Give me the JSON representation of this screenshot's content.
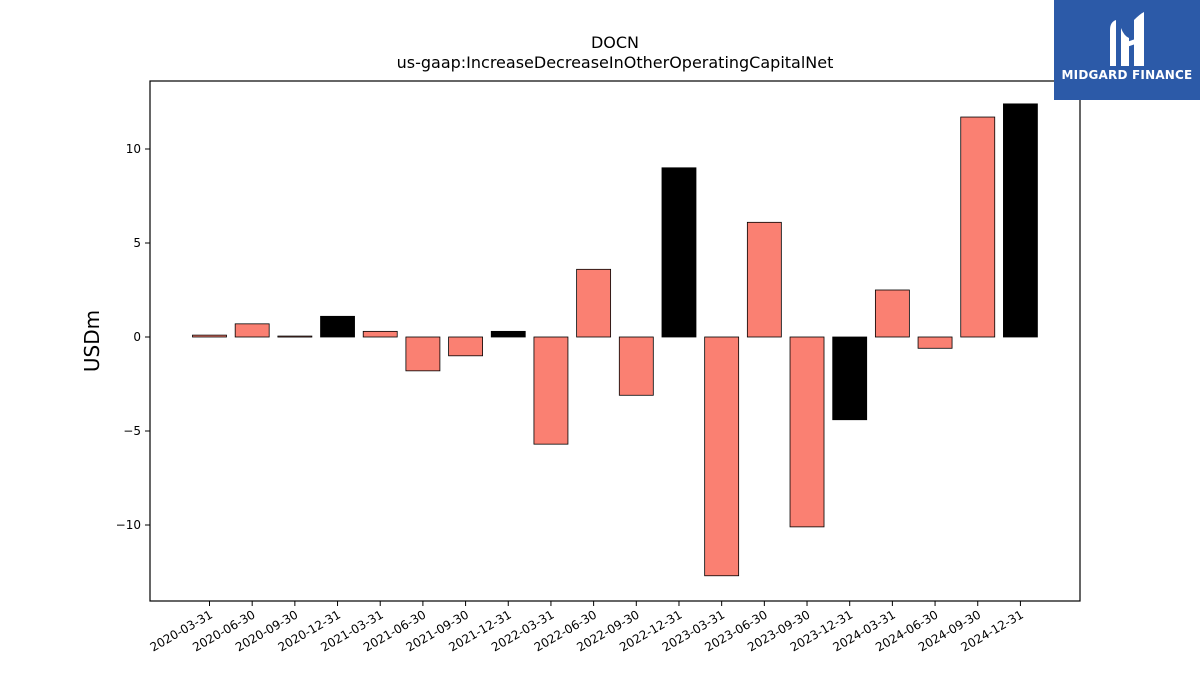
{
  "brand": {
    "name": "MIDGARD FINANCE",
    "color": "#2c5aa8"
  },
  "chart_data": {
    "type": "bar",
    "title": "DOCN",
    "subtitle": "us-gaap:IncreaseDecreaseInOtherOperatingCapitalNet",
    "xlabel": "",
    "ylabel": "USDm",
    "ylim": [
      -14,
      13.6
    ],
    "yticks": [
      10,
      5,
      0,
      -5,
      -10
    ],
    "ytick_labels": [
      "10",
      "5",
      "0",
      "−5",
      "−10"
    ],
    "grid": false,
    "colors": {
      "quarter": "#fa8072",
      "year_end": "#000000",
      "edge": "#000000"
    },
    "categories": [
      "2020-03-31",
      "2020-06-30",
      "2020-09-30",
      "2020-12-31",
      "2021-03-31",
      "2021-06-30",
      "2021-09-30",
      "2021-12-31",
      "2022-03-31",
      "2022-06-30",
      "2022-09-30",
      "2022-12-31",
      "2023-03-31",
      "2023-06-30",
      "2023-09-30",
      "2023-12-31",
      "2024-03-31",
      "2024-06-30",
      "2024-09-30",
      "2024-12-31"
    ],
    "values": [
      0.1,
      0.7,
      0.05,
      1.1,
      0.3,
      -1.8,
      -1.0,
      0.3,
      -5.7,
      3.6,
      -3.1,
      9.0,
      -12.7,
      6.1,
      -10.1,
      -4.4,
      2.5,
      -0.6,
      11.7,
      12.4
    ],
    "year_end": [
      false,
      false,
      false,
      true,
      false,
      false,
      false,
      true,
      false,
      false,
      false,
      true,
      false,
      false,
      false,
      true,
      false,
      false,
      false,
      true
    ]
  }
}
